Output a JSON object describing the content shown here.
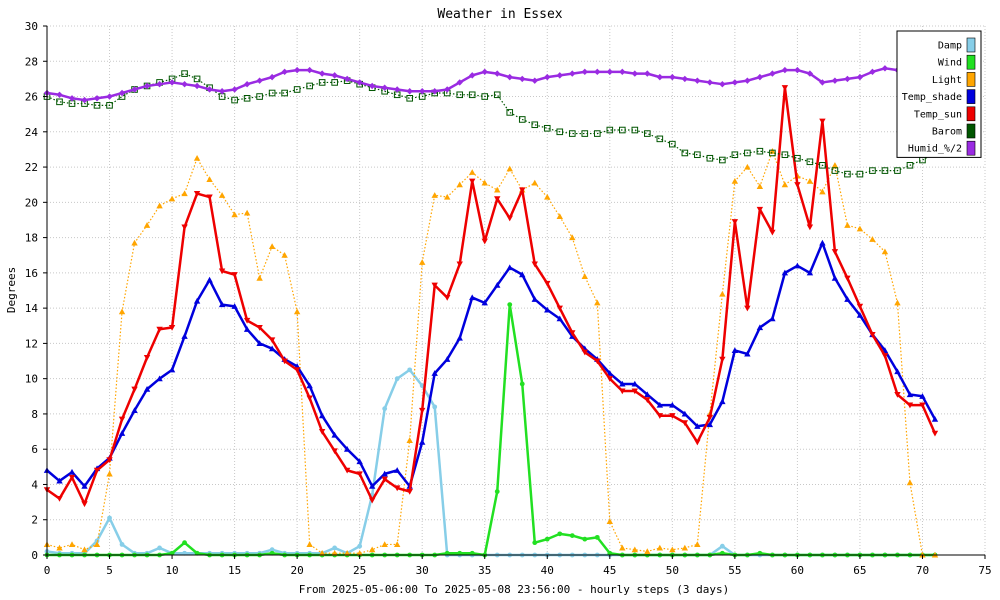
{
  "chart_data": {
    "type": "line",
    "title": "Weather in Essex",
    "xlabel": "From 2025-05-06:00 To 2025-05-08 23:56:00 - hourly steps (3 days)",
    "ylabel": "Degrees",
    "xlim": [
      0,
      75
    ],
    "ylim": [
      0,
      30
    ],
    "xticks": [
      "0",
      "5",
      "10",
      "15",
      "20",
      "25",
      "30",
      "35",
      "40",
      "45",
      "50",
      "55",
      "60",
      "65",
      "70",
      "75"
    ],
    "yticks": [
      "0",
      "2",
      "4",
      "6",
      "8",
      "10",
      "12",
      "14",
      "16",
      "18",
      "20",
      "22",
      "24",
      "26",
      "28",
      "30"
    ],
    "grid": true,
    "legend_position": "top-right",
    "x": [
      0,
      1,
      2,
      3,
      4,
      5,
      6,
      7,
      8,
      9,
      10,
      11,
      12,
      13,
      14,
      15,
      16,
      17,
      18,
      19,
      20,
      21,
      22,
      23,
      24,
      25,
      26,
      27,
      28,
      29,
      30,
      31,
      32,
      33,
      34,
      35,
      36,
      37,
      38,
      39,
      40,
      41,
      42,
      43,
      44,
      45,
      46,
      47,
      48,
      49,
      50,
      51,
      52,
      53,
      54,
      55,
      56,
      57,
      58,
      59,
      60,
      61,
      62,
      63,
      64,
      65,
      66,
      67,
      68,
      69,
      70,
      71
    ],
    "series": [
      {
        "name": "Damp",
        "color": "#87cee8",
        "style": "solid",
        "width": 2.5,
        "marker": "dot",
        "values": [
          0.2,
          0.1,
          0.1,
          0.1,
          0.8,
          2.1,
          0.6,
          0.1,
          0.1,
          0.4,
          0.1,
          0.1,
          0.1,
          0.1,
          0.1,
          0.1,
          0.1,
          0.1,
          0.3,
          0.1,
          0.1,
          0.1,
          0.1,
          0.4,
          0.1,
          0.5,
          3.4,
          8.3,
          10.0,
          10.5,
          9.6,
          8.4,
          0.0,
          0.0,
          0.0,
          0.0,
          0.0,
          0.0,
          0.0,
          0.0,
          0.0,
          0.0,
          0.0,
          0.0,
          0.0,
          0.0,
          0.0,
          0.0,
          0.0,
          0.0,
          0.0,
          0.0,
          0.0,
          0.0,
          0.5,
          0.0,
          0.0,
          0.0,
          0.0,
          0.0,
          0.0,
          0.0,
          0.0,
          0.0,
          0.0,
          0.0,
          0.0,
          0.0,
          0.0,
          0.0,
          0.0,
          0.0
        ]
      },
      {
        "name": "Wind",
        "color": "#22e022",
        "style": "solid",
        "width": 2.5,
        "marker": "dot",
        "values": [
          0,
          0,
          0,
          0,
          0,
          0,
          0,
          0,
          0,
          0,
          0.1,
          0.7,
          0.1,
          0,
          0,
          0,
          0,
          0,
          0.1,
          0,
          0,
          0,
          0,
          0,
          0,
          0,
          0,
          0,
          0,
          0,
          0,
          0,
          0.1,
          0.1,
          0.1,
          0,
          3.6,
          14.2,
          9.7,
          0.7,
          0.9,
          1.2,
          1.1,
          0.9,
          1.0,
          0.1,
          0,
          0,
          0,
          0,
          0,
          0,
          0,
          0,
          0.1,
          0,
          0,
          0.1,
          0,
          0,
          0,
          0,
          0,
          0,
          0,
          0,
          0,
          0,
          0,
          0,
          0,
          0
        ]
      },
      {
        "name": "Light",
        "color": "#ffa500",
        "style": "dotted",
        "width": 1.2,
        "marker": "triangle-up",
        "values": [
          0.6,
          0.4,
          0.6,
          0.3,
          0.6,
          4.6,
          13.8,
          17.7,
          18.7,
          19.8,
          20.2,
          20.5,
          22.5,
          21.3,
          20.4,
          19.3,
          19.4,
          15.7,
          17.5,
          17.0,
          13.8,
          0.6,
          0.1,
          0.1,
          0.1,
          0.1,
          0.3,
          0.6,
          0.6,
          6.5,
          16.6,
          20.4,
          20.3,
          21.0,
          21.7,
          21.1,
          20.7,
          21.9,
          20.7,
          21.1,
          20.3,
          19.2,
          18.0,
          15.8,
          14.3,
          1.9,
          0.4,
          0.3,
          0.2,
          0.4,
          0.3,
          0.4,
          0.6,
          8.0,
          14.8,
          21.2,
          22.0,
          20.9,
          22.9,
          21.0,
          21.5,
          21.2,
          20.6,
          22.1,
          18.7,
          18.5,
          17.9,
          17.2,
          14.3,
          4.1,
          0.0,
          0.0
        ]
      },
      {
        "name": "Temp_shade",
        "color": "#0000dd",
        "style": "solid",
        "width": 2.5,
        "marker": "triangle-up",
        "values": [
          4.8,
          4.2,
          4.7,
          3.9,
          4.9,
          5.5,
          6.9,
          8.2,
          9.4,
          10.0,
          10.5,
          12.4,
          14.4,
          15.6,
          14.2,
          14.1,
          12.8,
          12.0,
          11.7,
          11.1,
          10.7,
          9.6,
          7.9,
          6.8,
          6.0,
          5.3,
          3.9,
          4.6,
          4.8,
          3.9,
          6.4,
          10.3,
          11.1,
          12.3,
          14.6,
          14.3,
          15.3,
          16.3,
          15.9,
          14.5,
          13.9,
          13.4,
          12.4,
          11.7,
          11.1,
          10.3,
          9.7,
          9.7,
          9.1,
          8.5,
          8.5,
          8.0,
          7.3,
          7.4,
          8.7,
          11.6,
          11.4,
          12.9,
          13.4,
          16.0,
          16.4,
          16.0,
          17.7,
          15.7,
          14.5,
          13.6,
          12.5,
          11.6,
          10.4,
          9.1,
          9.0,
          7.7
        ]
      },
      {
        "name": "Temp_sun",
        "color": "#ee0000",
        "style": "solid",
        "width": 2.5,
        "marker": "triangle-down",
        "values": [
          3.7,
          3.2,
          4.4,
          2.9,
          4.8,
          5.4,
          7.7,
          9.4,
          11.2,
          12.8,
          12.9,
          18.6,
          20.5,
          20.3,
          16.1,
          15.9,
          13.3,
          12.9,
          12.2,
          11.0,
          10.5,
          8.9,
          7.0,
          5.9,
          4.8,
          4.6,
          3.1,
          4.3,
          3.8,
          3.6,
          8.2,
          15.3,
          14.6,
          16.5,
          21.2,
          17.8,
          20.2,
          19.1,
          20.7,
          16.5,
          15.4,
          14.0,
          12.6,
          11.5,
          11.0,
          10.0,
          9.3,
          9.3,
          8.8,
          7.9,
          7.9,
          7.5,
          6.4,
          7.8,
          11.1,
          18.9,
          14.0,
          19.6,
          18.3,
          26.5,
          21.0,
          18.6,
          24.6,
          17.2,
          15.7,
          14.1,
          12.5,
          11.3,
          9.1,
          8.5,
          8.5,
          6.9
        ]
      },
      {
        "name": "Barom",
        "color": "#005500",
        "style": "dotted",
        "width": 1.2,
        "marker": "square",
        "values": [
          26.0,
          25.7,
          25.6,
          25.6,
          25.5,
          25.5,
          26.0,
          26.4,
          26.6,
          26.8,
          27.0,
          27.3,
          27.0,
          26.5,
          26.0,
          25.8,
          25.9,
          26.0,
          26.2,
          26.2,
          26.4,
          26.6,
          26.8,
          26.8,
          26.9,
          26.7,
          26.5,
          26.3,
          26.1,
          25.9,
          26.0,
          26.2,
          26.2,
          26.1,
          26.1,
          26.0,
          26.1,
          25.1,
          24.7,
          24.4,
          24.2,
          24.0,
          23.9,
          23.9,
          23.9,
          24.1,
          24.1,
          24.1,
          23.9,
          23.6,
          23.3,
          22.8,
          22.7,
          22.5,
          22.4,
          22.7,
          22.8,
          22.9,
          22.8,
          22.7,
          22.5,
          22.3,
          22.1,
          21.8,
          21.6,
          21.6,
          21.8,
          21.8,
          21.8,
          22.1,
          22.4,
          22.8
        ]
      },
      {
        "name": "Humid_%/2",
        "color": "#9a2be2",
        "style": "solid",
        "width": 2.5,
        "marker": "diamond",
        "values": [
          26.2,
          26.1,
          25.9,
          25.8,
          25.9,
          26.0,
          26.2,
          26.4,
          26.6,
          26.7,
          26.8,
          26.7,
          26.6,
          26.4,
          26.3,
          26.4,
          26.7,
          26.9,
          27.1,
          27.4,
          27.5,
          27.5,
          27.3,
          27.2,
          27.0,
          26.8,
          26.6,
          26.5,
          26.4,
          26.3,
          26.3,
          26.3,
          26.4,
          26.8,
          27.2,
          27.4,
          27.3,
          27.1,
          27.0,
          26.9,
          27.1,
          27.2,
          27.3,
          27.4,
          27.4,
          27.4,
          27.4,
          27.3,
          27.3,
          27.1,
          27.1,
          27.0,
          26.9,
          26.8,
          26.7,
          26.8,
          26.9,
          27.1,
          27.3,
          27.5,
          27.5,
          27.3,
          26.8,
          26.9,
          27.0,
          27.1,
          27.4,
          27.6,
          27.5,
          27.4,
          27.3,
          27.4
        ]
      }
    ]
  }
}
